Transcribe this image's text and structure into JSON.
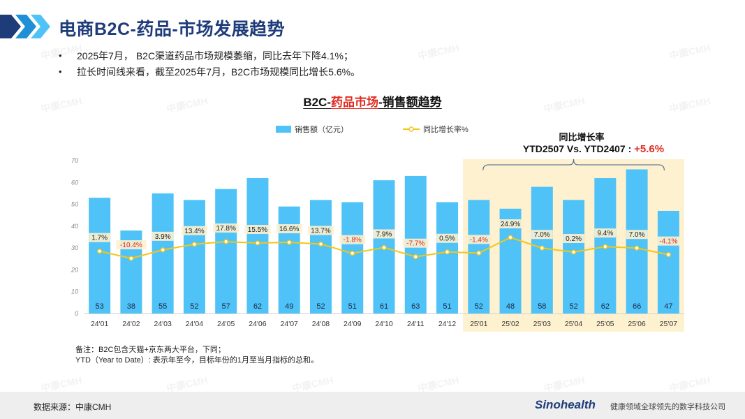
{
  "slide": {
    "title": "电商B2C-药品-市场发展趋势",
    "bullets": [
      "2025年7月， B2C渠道药品市场规模萎缩，同比去年下降4.1%；",
      "拉长时间线来看，截至2025年7月，B2C市场规模同比增长5.6%。"
    ],
    "notes": [
      "备注：B2C包含天猫+京东两大平台，下同；",
      "YTD（Year to Date）: 表示年至今，目标年份的1月至当月指标的总和。"
    ],
    "watermark": "中康CMH"
  },
  "chart_title": {
    "prefix": "B2C-",
    "highlight": "药品市场",
    "suffix": "-销售额趋势"
  },
  "ytd": {
    "label": "同比增长率",
    "text": "YTD2507 Vs. YTD2407 : ",
    "value": "+5.6%"
  },
  "footer": {
    "source": "数据来源：中康CMH",
    "logo": "Sinohealth",
    "tagline": "健康领域全球领先的数字科技公司"
  },
  "colors": {
    "bar": "#4fc3f7",
    "line": "#f5c518",
    "highlight_bg": "#fdf1cf",
    "negative": "#e02b20",
    "title": "#1f3c7a"
  },
  "chart_data": {
    "type": "bar",
    "title": "B2C-药品市场-销售额趋势",
    "categories": [
      "24'01",
      "24'02",
      "24'03",
      "24'04",
      "24'05",
      "24'06",
      "24'07",
      "24'08",
      "24'09",
      "24'10",
      "24'11",
      "24'12",
      "25'01",
      "25'02",
      "25'03",
      "25'04",
      "25'05",
      "25'06",
      "25'07"
    ],
    "series": [
      {
        "name": "销售额（亿元）",
        "type": "bar",
        "values": [
          53,
          38,
          55,
          52,
          57,
          62,
          49,
          52,
          51,
          61,
          63,
          51,
          52,
          48,
          58,
          52,
          62,
          66,
          47
        ]
      },
      {
        "name": "同比增长率%",
        "type": "line",
        "values": [
          1.7,
          -10.4,
          3.9,
          13.4,
          17.8,
          15.5,
          16.6,
          13.7,
          -1.8,
          7.9,
          -7.7,
          0.5,
          -1.4,
          24.9,
          7.0,
          0.2,
          9.4,
          7.0,
          -4.1
        ],
        "labels": [
          "1.7%",
          "-10.4%",
          "3.9%",
          "13.4%",
          "17.8%",
          "15.5%",
          "16.6%",
          "13.7%",
          "-1.8%",
          "7.9%",
          "-7.7%",
          "0.5%",
          "-1.4%",
          "24.9%",
          "7.0%",
          "0.2%",
          "9.4%",
          "7.0%",
          "-4.1%"
        ]
      }
    ],
    "ylim": [
      0,
      70
    ],
    "yticks": [
      0,
      10,
      20,
      30,
      40,
      50,
      60,
      70
    ],
    "highlight_range": [
      "25'01",
      "25'07"
    ],
    "xlabel": "",
    "ylabel": "",
    "legend": "top"
  }
}
